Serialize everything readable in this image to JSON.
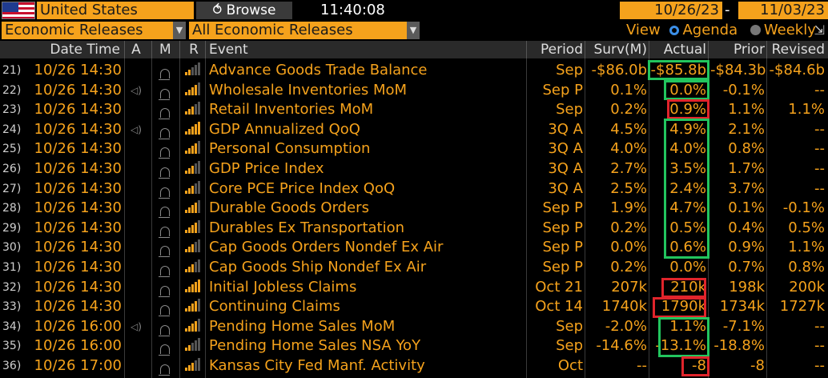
{
  "toolbar": {
    "country": "United States",
    "browse_label": "Browse",
    "clock": "11:40:08",
    "date_from": "10/26/23",
    "date_separator": "-",
    "date_to": "11/03/23"
  },
  "filters": {
    "category": "Economic Releases",
    "subcategory": "All Economic Releases",
    "view_label": "View",
    "view_agenda": "Agenda",
    "view_weekly": "Weekly"
  },
  "columns": {
    "datetime": "Date Time",
    "a": "A",
    "m": "M",
    "r": "R",
    "event": "Event",
    "period": "Period",
    "surv": "Surv(M)",
    "actual": "Actual",
    "prior": "Prior",
    "revised": "Revised"
  },
  "rows": [
    {
      "num": "21)",
      "datetime": "10/26 14:30",
      "alert": "",
      "bars": 2,
      "event": "Advance Goods Trade Balance",
      "period": "Sep",
      "surv": "-$86.0b",
      "actual": "-$85.8b",
      "prior": "-$84.3b",
      "revised": "-$84.6b"
    },
    {
      "num": "22)",
      "datetime": "10/26 14:30",
      "alert": "◁)",
      "bars": 4,
      "event": "Wholesale Inventories MoM",
      "period": "Sep P",
      "surv": "0.1%",
      "actual": "0.0%",
      "prior": "-0.1%",
      "revised": "--"
    },
    {
      "num": "23)",
      "datetime": "10/26 14:30",
      "alert": "",
      "bars": 3,
      "event": "Retail Inventories MoM",
      "period": "Sep",
      "surv": "0.2%",
      "actual": "0.9%",
      "prior": "1.1%",
      "revised": "1.1%"
    },
    {
      "num": "24)",
      "datetime": "10/26 14:30",
      "alert": "◁)",
      "bars": 5,
      "event": "GDP Annualized QoQ",
      "period": "3Q A",
      "surv": "4.5%",
      "actual": "4.9%",
      "prior": "2.1%",
      "revised": "--"
    },
    {
      "num": "25)",
      "datetime": "10/26 14:30",
      "alert": "",
      "bars": 4,
      "event": "Personal Consumption",
      "period": "3Q A",
      "surv": "4.0%",
      "actual": "4.0%",
      "prior": "0.8%",
      "revised": "--"
    },
    {
      "num": "26)",
      "datetime": "10/26 14:30",
      "alert": "",
      "bars": 3,
      "event": "GDP Price Index",
      "period": "3Q A",
      "surv": "2.7%",
      "actual": "3.5%",
      "prior": "1.7%",
      "revised": "--"
    },
    {
      "num": "27)",
      "datetime": "10/26 14:30",
      "alert": "",
      "bars": 3,
      "event": "Core PCE Price Index QoQ",
      "period": "3Q A",
      "surv": "2.5%",
      "actual": "2.4%",
      "prior": "3.7%",
      "revised": "--"
    },
    {
      "num": "28)",
      "datetime": "10/26 14:30",
      "alert": "",
      "bars": 4,
      "event": "Durable Goods Orders",
      "period": "Sep P",
      "surv": "1.9%",
      "actual": "4.7%",
      "prior": "0.1%",
      "revised": "-0.1%"
    },
    {
      "num": "29)",
      "datetime": "10/26 14:30",
      "alert": "",
      "bars": 4,
      "event": "Durables Ex Transportation",
      "period": "Sep P",
      "surv": "0.2%",
      "actual": "0.5%",
      "prior": "0.4%",
      "revised": "0.5%"
    },
    {
      "num": "30)",
      "datetime": "10/26 14:30",
      "alert": "",
      "bars": 3,
      "event": "Cap Goods Orders Nondef Ex Air",
      "period": "Sep P",
      "surv": "0.0%",
      "actual": "0.6%",
      "prior": "0.9%",
      "revised": "1.1%"
    },
    {
      "num": "31)",
      "datetime": "10/26 14:30",
      "alert": "",
      "bars": 3,
      "event": "Cap Goods Ship Nondef Ex Air",
      "period": "Sep P",
      "surv": "0.2%",
      "actual": "0.0%",
      "prior": "0.7%",
      "revised": "0.8%"
    },
    {
      "num": "32)",
      "datetime": "10/26 14:30",
      "alert": "",
      "bars": 5,
      "event": "Initial Jobless Claims",
      "period": "Oct 21",
      "surv": "207k",
      "actual": "210k",
      "prior": "198k",
      "revised": "200k"
    },
    {
      "num": "33)",
      "datetime": "10/26 14:30",
      "alert": "",
      "bars": 4,
      "event": "Continuing Claims",
      "period": "Oct 14",
      "surv": "1740k",
      "actual": "1790k",
      "prior": "1734k",
      "revised": "1727k"
    },
    {
      "num": "34)",
      "datetime": "10/26 16:00",
      "alert": "◁)",
      "bars": 4,
      "event": "Pending Home Sales MoM",
      "period": "Sep",
      "surv": "-2.0%",
      "actual": "1.1%",
      "prior": "-7.1%",
      "revised": "--"
    },
    {
      "num": "35)",
      "datetime": "10/26 16:00",
      "alert": "",
      "bars": 2,
      "event": "Pending Home Sales NSA YoY",
      "period": "Sep",
      "surv": "-14.6%",
      "actual": "-13.1%",
      "prior": "-18.8%",
      "revised": "--"
    },
    {
      "num": "36)",
      "datetime": "10/26 17:00",
      "alert": "",
      "bars": 3,
      "event": "Kansas City Fed Manf. Activity",
      "period": "Oct",
      "surv": "--",
      "actual": "-8",
      "prior": "-8",
      "revised": "--"
    }
  ],
  "colors": {
    "accent": "#f5a21c",
    "highlight_green": "#22c55e",
    "highlight_red": "#e0242b",
    "background": "#000000"
  }
}
